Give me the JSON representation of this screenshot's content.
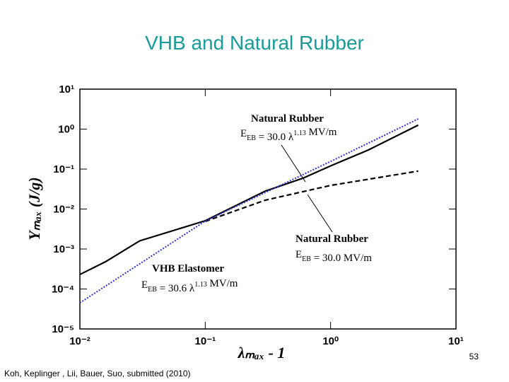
{
  "chart_data": {
    "type": "line",
    "title": "VHB and Natural Rubber",
    "x_label": "λₘₐₓ - 1",
    "y_label": "Yₘₐₓ (J/g)",
    "xscale": "log",
    "yscale": "log",
    "xlim": [
      0.01,
      10
    ],
    "ylim": [
      1e-05,
      10
    ],
    "xticks": [
      {
        "value": 0.01,
        "label": "10⁻²"
      },
      {
        "value": 0.1,
        "label": "10⁻¹"
      },
      {
        "value": 1,
        "label": "10⁰"
      },
      {
        "value": 10,
        "label": "10¹"
      }
    ],
    "yticks": [
      {
        "value": 1e-05,
        "label": "10⁻⁵"
      },
      {
        "value": 0.0001,
        "label": "10⁻⁴"
      },
      {
        "value": 0.001,
        "label": "10⁻³"
      },
      {
        "value": 0.01,
        "label": "10⁻²"
      },
      {
        "value": 0.1,
        "label": "10⁻¹"
      },
      {
        "value": 1,
        "label": "10⁰"
      },
      {
        "value": 10,
        "label": "10¹"
      }
    ],
    "series": [
      {
        "color": "#000000",
        "style": "solid",
        "x": [
          0.01,
          0.016,
          0.03,
          0.1,
          0.3,
          0.6,
          1,
          2,
          5
        ],
        "values": [
          0.00023,
          0.00048,
          0.0016,
          0.0051,
          0.028,
          0.059,
          0.12,
          0.3,
          1.26
        ]
      },
      {
        "color": "#000000",
        "style": "dashed",
        "x": [
          0.1,
          0.3,
          1,
          5
        ],
        "values": [
          0.0049,
          0.0166,
          0.039,
          0.089
        ]
      },
      {
        "color": "#3333cc",
        "style": "dotted",
        "x": [
          0.01,
          0.1,
          1,
          5
        ],
        "values": [
          4.5e-05,
          0.005,
          0.155,
          1.8
        ]
      }
    ],
    "annotations": [
      {
        "title": "Natural Rubber",
        "formula": [
          {
            "text": "E"
          },
          {
            "sub": "EB"
          },
          {
            "text": " = 30.0 λ"
          },
          {
            "sup": "1.13"
          },
          {
            "text": " MV/m"
          }
        ]
      },
      {
        "title": "Natural Rubber",
        "formula": [
          {
            "text": "E"
          },
          {
            "sub": "EB"
          },
          {
            "text": " = 30.0 MV/m"
          }
        ]
      },
      {
        "title": "VHB Elastomer",
        "formula": [
          {
            "text": "E"
          },
          {
            "sub": "EB"
          },
          {
            "text": " = 30.6 λ"
          },
          {
            "sup": "1.13"
          },
          {
            "text": " MV/m"
          }
        ]
      }
    ]
  },
  "slide": {
    "page_number": "53",
    "citation": "Koh, Keplinger , Lii, Bauer, Suo, submitted (2010)"
  }
}
